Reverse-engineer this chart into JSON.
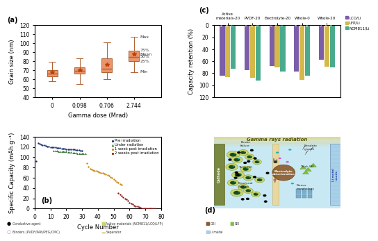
{
  "panel_a": {
    "xlabel": "Gamma dose (Mrad)",
    "ylabel": "Grain size (nm)",
    "x_positions": [
      0,
      1,
      2,
      3
    ],
    "x_labels": [
      "0",
      "0.098",
      "0.706",
      "2.744"
    ],
    "ylim": [
      40,
      120
    ],
    "yticks": [
      40,
      50,
      60,
      70,
      80,
      90,
      100,
      110,
      120
    ],
    "boxes": [
      {
        "med": 66,
        "q1": 63,
        "q3": 70,
        "whislo": 58,
        "whishi": 79,
        "mean": 68
      },
      {
        "med": 69,
        "q1": 66,
        "q3": 73,
        "whislo": 55,
        "whishi": 83,
        "mean": 70
      },
      {
        "med": 72,
        "q1": 68,
        "q3": 83,
        "whislo": 60,
        "whishi": 101,
        "mean": 76
      },
      {
        "med": 85,
        "q1": 80,
        "q3": 92,
        "whislo": 68,
        "whishi": 107,
        "mean": 88
      }
    ],
    "box_color": "#e8956d",
    "edge_color": "#b06030"
  },
  "panel_b": {
    "xlabel": "Cycle Number",
    "ylabel": "Specific Capacity (mAh g⁻¹)",
    "xlim": [
      0,
      80
    ],
    "ylim": [
      0,
      140
    ],
    "yticks": [
      0,
      20,
      40,
      60,
      80,
      100,
      120,
      140
    ],
    "xticks": [
      0,
      10,
      20,
      30,
      40,
      50,
      60,
      70,
      80
    ],
    "series": [
      {
        "label": "Pre irradiation",
        "color": "#1a2f6e",
        "marker": "o",
        "x": [
          1,
          2,
          3,
          4,
          5,
          6,
          7,
          8,
          9,
          10,
          11,
          12,
          13,
          14,
          15,
          16,
          17,
          18,
          19,
          20,
          21,
          22,
          23,
          24,
          25,
          26,
          27,
          28,
          29,
          30
        ],
        "y": [
          93,
          128,
          126,
          125,
          124,
          123,
          122,
          121,
          121,
          120,
          120,
          119,
          119,
          118,
          118,
          118,
          117,
          117,
          117,
          116,
          116,
          116,
          115,
          115,
          115,
          114,
          114,
          114,
          113,
          113
        ]
      },
      {
        "label": "Under radiation",
        "color": "#2a6e2a",
        "marker": "^",
        "x": [
          12,
          13,
          14,
          15,
          16,
          17,
          18,
          19,
          20,
          21,
          22,
          23,
          24,
          25,
          26,
          27,
          28,
          29,
          30,
          31,
          32
        ],
        "y": [
          113,
          113,
          113,
          112,
          112,
          112,
          111,
          111,
          111,
          110,
          110,
          110,
          109,
          109,
          109,
          108,
          108,
          108,
          107,
          107,
          107
        ]
      },
      {
        "label": "1 week post irradiation",
        "color": "#c8860a",
        "marker": "o",
        "x": [
          33,
          34,
          35,
          36,
          37,
          38,
          39,
          40,
          41,
          42,
          43,
          44,
          45,
          46,
          47,
          48,
          49,
          50,
          51,
          52,
          53,
          54,
          55
        ],
        "y": [
          88,
          82,
          78,
          76,
          75,
          74,
          73,
          72,
          71,
          70,
          69,
          68,
          67,
          66,
          64,
          62,
          60,
          58,
          55,
          52,
          50,
          48,
          46
        ]
      },
      {
        "label": "2 weeks post irradiation",
        "color": "#8b1a1a",
        "marker": "o",
        "x": [
          53,
          54,
          55,
          56,
          57,
          58,
          59,
          60,
          61,
          62,
          63,
          64,
          65,
          66,
          67,
          68,
          69,
          70,
          71,
          72,
          73,
          74,
          75,
          76
        ],
        "y": [
          30,
          28,
          25,
          22,
          20,
          18,
          15,
          12,
          10,
          8,
          6,
          5,
          4,
          3,
          2,
          1,
          1,
          0,
          0,
          0,
          0,
          0,
          0,
          0
        ]
      }
    ]
  },
  "panel_c": {
    "ylabel": "Capacity retention (%)",
    "ylim": [
      0,
      120
    ],
    "yticks": [
      0,
      20,
      40,
      60,
      80,
      100,
      120
    ],
    "groups": [
      "Active\nmaterials-20",
      "PVDF-20",
      "Electrolyte-20",
      "Whole-0",
      "Whole-20"
    ],
    "series_labels": [
      "LCO/Li",
      "LFP/Li",
      "NCM811/Li"
    ],
    "colors": [
      "#7b5ea7",
      "#d4b84a",
      "#4aab8c"
    ],
    "values": [
      [
        84.4,
        86.8,
        73.1
      ],
      [
        75.4,
        87.6,
        92.4
      ],
      [
        67.5,
        70.4,
        77.7
      ],
      [
        76.6,
        90.9,
        84.2
      ],
      [
        57.7,
        69.6,
        70.3
      ]
    ],
    "bar_width": 0.22
  },
  "panel_d": {
    "bg_color": "#c8e8f0",
    "gamma_text": "Gamma rays radiation",
    "labels_left": [
      "Binder\nfailure",
      "Thick CEI",
      "Structural\nchange"
    ],
    "labels_right": [
      "Dendrite\ngrowth",
      "Thick SEI",
      "Porous\nmorphology"
    ],
    "center_text": "Electrolyte\ndeterioration"
  }
}
